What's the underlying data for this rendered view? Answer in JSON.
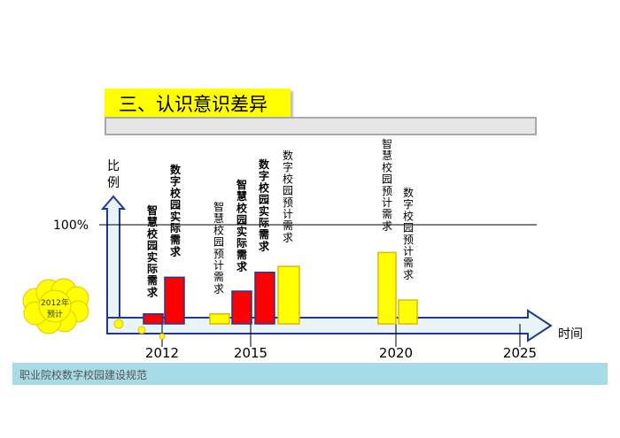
{
  "title": "三、认识意识差异",
  "footer": "职业院校数字校园建设规范",
  "colors": {
    "actual": "#ff0000",
    "planned": "#ffff00",
    "bar_edge": "#1f3a93",
    "axis": "#1f3a93",
    "axis_fill": "#e8f4f8",
    "cloud": "#ffff00"
  },
  "chart_data": {
    "type": "bar",
    "ylabel": "比例",
    "xlabel": "时间",
    "y_reference_label": "100%",
    "x_ticks": [
      "2012",
      "2015",
      "2020",
      "2025"
    ],
    "callout": "2012年\n预计",
    "ylim": [
      0,
      100
    ],
    "series": [
      {
        "name": "智慧校园实际需求",
        "group": "2012",
        "kind": "actual",
        "value": 10,
        "label": "智慧校园实际需求",
        "bold": true
      },
      {
        "name": "数字校园实际需求",
        "group": "2012",
        "kind": "actual",
        "value": 47,
        "label": "数字校园实际需求",
        "bold": true
      },
      {
        "name": "智慧校园预计需求",
        "group": "2015a",
        "kind": "planned",
        "value": 10,
        "label": "智慧校园预计需求",
        "bold": false
      },
      {
        "name": "智慧校园实际需求",
        "group": "2015a",
        "kind": "actual",
        "value": 33,
        "label": "智慧校园实际需求",
        "bold": true
      },
      {
        "name": "数字校园实际需求",
        "group": "2015b",
        "kind": "actual",
        "value": 52,
        "label": "数字校园实际需求",
        "bold": true
      },
      {
        "name": "数字校园预计需求",
        "group": "2015b",
        "kind": "planned",
        "value": 58,
        "label": "数字校园预计需求",
        "bold": false
      },
      {
        "name": "智慧校园预计需求",
        "group": "2020",
        "kind": "planned",
        "value": 72,
        "label": "智慧校园预计需求",
        "bold": false
      },
      {
        "name": "数字校园预计需求",
        "group": "2020",
        "kind": "planned",
        "value": 24,
        "label": "数字校园预计需求",
        "bold": false
      }
    ]
  }
}
